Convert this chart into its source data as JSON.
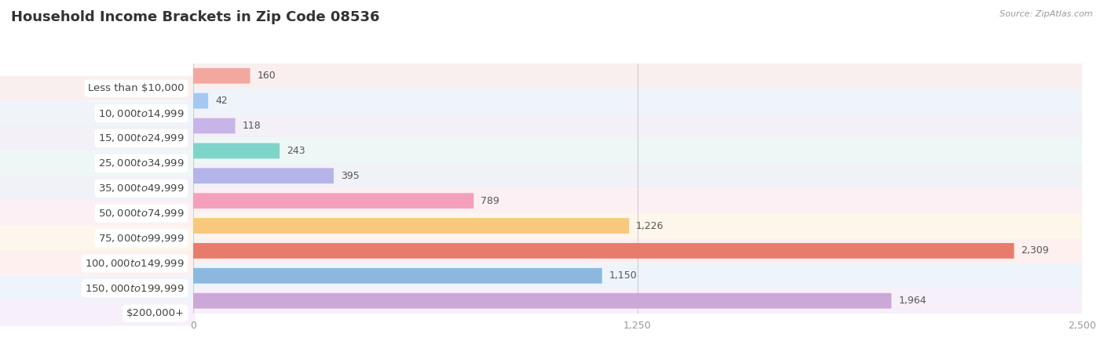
{
  "title": "Household Income Brackets in Zip Code 08536",
  "source_text": "Source: ZipAtlas.com",
  "categories": [
    "Less than $10,000",
    "$10,000 to $14,999",
    "$15,000 to $24,999",
    "$25,000 to $34,999",
    "$35,000 to $49,999",
    "$50,000 to $74,999",
    "$75,000 to $99,999",
    "$100,000 to $149,999",
    "$150,000 to $199,999",
    "$200,000+"
  ],
  "values": [
    160,
    42,
    118,
    243,
    395,
    789,
    1226,
    2309,
    1150,
    1964
  ],
  "bar_colors": [
    "#f2a89e",
    "#a4c8f0",
    "#c8b4e8",
    "#7ed4c8",
    "#b4b4e8",
    "#f4a0bc",
    "#f8c87c",
    "#e87c6c",
    "#8cb8e0",
    "#cca8d8"
  ],
  "row_bg_colors": [
    "#f9efee",
    "#eff4fb",
    "#f3f0f8",
    "#edf8f6",
    "#f1f1f8",
    "#fdf0f4",
    "#fdf6eb",
    "#fdf0ee",
    "#eef4fb",
    "#f7f0fb"
  ],
  "xlim": [
    0,
    2500
  ],
  "xticks": [
    0,
    1250,
    2500
  ],
  "title_fontsize": 13,
  "label_fontsize": 9.5,
  "value_fontsize": 9,
  "bg_color": "#ffffff",
  "title_color": "#333333",
  "label_color": "#444444",
  "value_color": "#555555",
  "grid_color": "#cccccc",
  "tick_color": "#999999"
}
